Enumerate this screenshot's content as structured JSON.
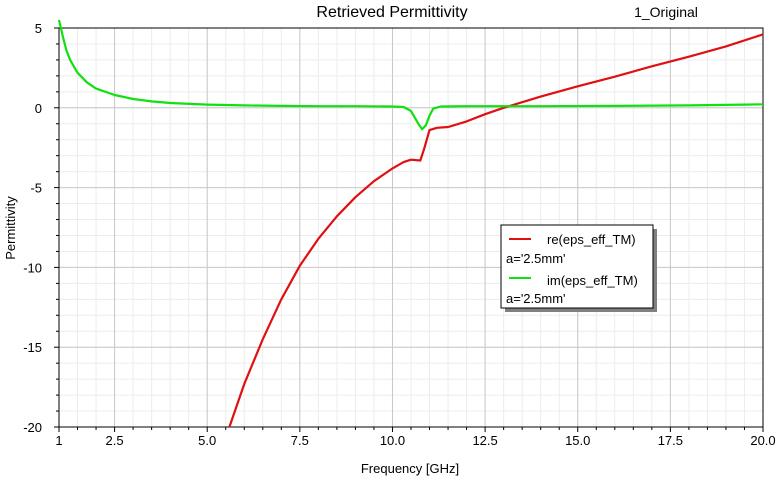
{
  "chart_data": {
    "type": "line",
    "title": "Retrieved Permittivity",
    "tag": "1_Original",
    "xlabel": "Frequency [GHz]",
    "ylabel": "Permittivity",
    "xlim": [
      1,
      20
    ],
    "ylim": [
      -20,
      5
    ],
    "xticks": [
      1,
      2.5,
      5.0,
      7.5,
      10.0,
      12.5,
      15.0,
      17.5,
      20.0
    ],
    "xtick_labels": [
      "1",
      "2.5",
      "5.0",
      "7.5",
      "10.0",
      "12.5",
      "15.0",
      "17.5",
      "20.0"
    ],
    "yticks": [
      5,
      0,
      -5,
      -10,
      -15,
      -20
    ],
    "ytick_labels": [
      "5",
      "0",
      "-5",
      "-10",
      "-15",
      "-20"
    ],
    "grid": true,
    "legend_position": "center-right",
    "series": [
      {
        "name": "re(eps_eff_TM)",
        "sublabel": "a='2.5mm'",
        "color": "#e01010",
        "x": [
          5.6,
          6.0,
          6.5,
          7.0,
          7.5,
          8.0,
          8.5,
          9.0,
          9.5,
          10.0,
          10.3,
          10.5,
          10.75,
          10.85,
          11.0,
          11.2,
          11.5,
          12.0,
          12.5,
          13.0,
          14.0,
          15.0,
          16.0,
          17.0,
          18.0,
          19.0,
          20.0
        ],
        "y": [
          -20.0,
          -17.3,
          -14.5,
          -12.0,
          -9.9,
          -8.2,
          -6.8,
          -5.6,
          -4.6,
          -3.8,
          -3.4,
          -3.25,
          -3.3,
          -2.6,
          -1.4,
          -1.25,
          -1.2,
          -0.85,
          -0.4,
          0.0,
          0.7,
          1.35,
          1.95,
          2.6,
          3.2,
          3.85,
          4.6
        ]
      },
      {
        "name": "im(eps_eff_TM)",
        "sublabel": "a='2.5mm'",
        "color": "#10e010",
        "x": [
          1.0,
          1.05,
          1.1,
          1.2,
          1.3,
          1.5,
          1.75,
          2.0,
          2.5,
          3.0,
          3.5,
          4.0,
          5.0,
          6.0,
          7.0,
          8.0,
          9.0,
          10.0,
          10.3,
          10.5,
          10.6,
          10.7,
          10.8,
          10.9,
          11.0,
          11.1,
          11.3,
          12.0,
          13.0,
          14.0,
          16.0,
          18.0,
          19.5,
          20.0
        ],
        "y": [
          5.5,
          5.0,
          4.5,
          3.6,
          3.0,
          2.2,
          1.6,
          1.2,
          0.8,
          0.55,
          0.4,
          0.3,
          0.2,
          0.15,
          0.12,
          0.1,
          0.1,
          0.08,
          0.05,
          -0.2,
          -0.6,
          -1.0,
          -1.35,
          -1.1,
          -0.5,
          -0.05,
          0.08,
          0.1,
          0.1,
          0.1,
          0.12,
          0.15,
          0.2,
          0.22
        ]
      }
    ]
  }
}
